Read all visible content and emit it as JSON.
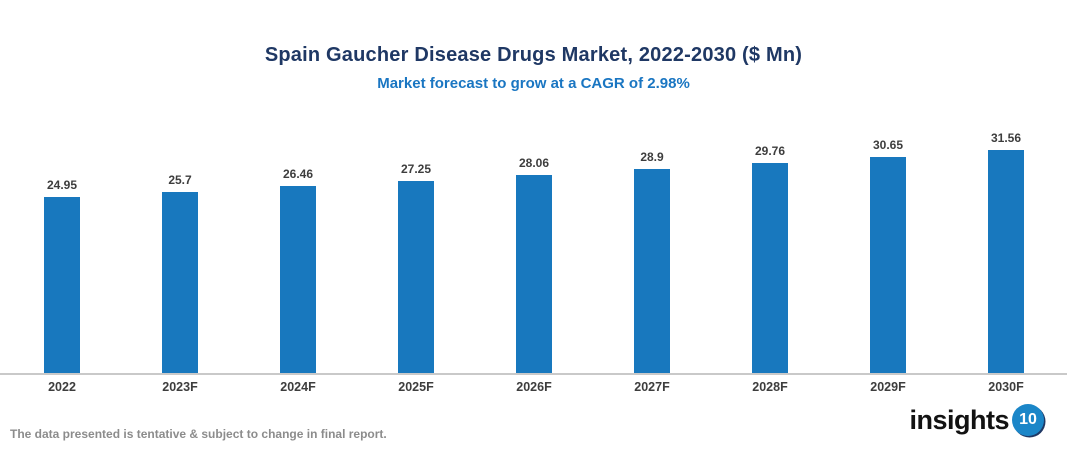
{
  "header": {
    "title": "Spain Gaucher Disease Drugs Market, 2022-2030 ($ Mn)",
    "subtitle": "Market forecast to grow at a CAGR of 2.98%"
  },
  "chart_data": {
    "type": "bar",
    "categories": [
      "2022",
      "2023F",
      "2024F",
      "2025F",
      "2026F",
      "2027F",
      "2028F",
      "2029F",
      "2030F"
    ],
    "values": [
      24.95,
      25.7,
      26.46,
      27.25,
      28.06,
      28.9,
      29.76,
      30.65,
      31.56
    ],
    "title": "Spain Gaucher Disease Drugs Market, 2022-2030 ($ Mn)",
    "subtitle": "Market forecast to grow at a CAGR of 2.98%",
    "xlabel": "",
    "ylabel": "",
    "ylim": [
      0,
      38
    ],
    "grid": false,
    "legend": "none",
    "value_labels": true,
    "bar_color": "#1878be"
  },
  "footer": {
    "disclaimer": "The data presented is tentative & subject to change in final report.",
    "logo": {
      "text": "insights",
      "badge": "10"
    }
  },
  "colors": {
    "title": "#1f3864",
    "subtitle": "#1a76c2",
    "bar": "#1878be",
    "axis_line": "#c9c9c9",
    "label_text": "#3d3d3d",
    "footer_text": "#8c8c8c",
    "logo_badge": "#1b86c8"
  }
}
